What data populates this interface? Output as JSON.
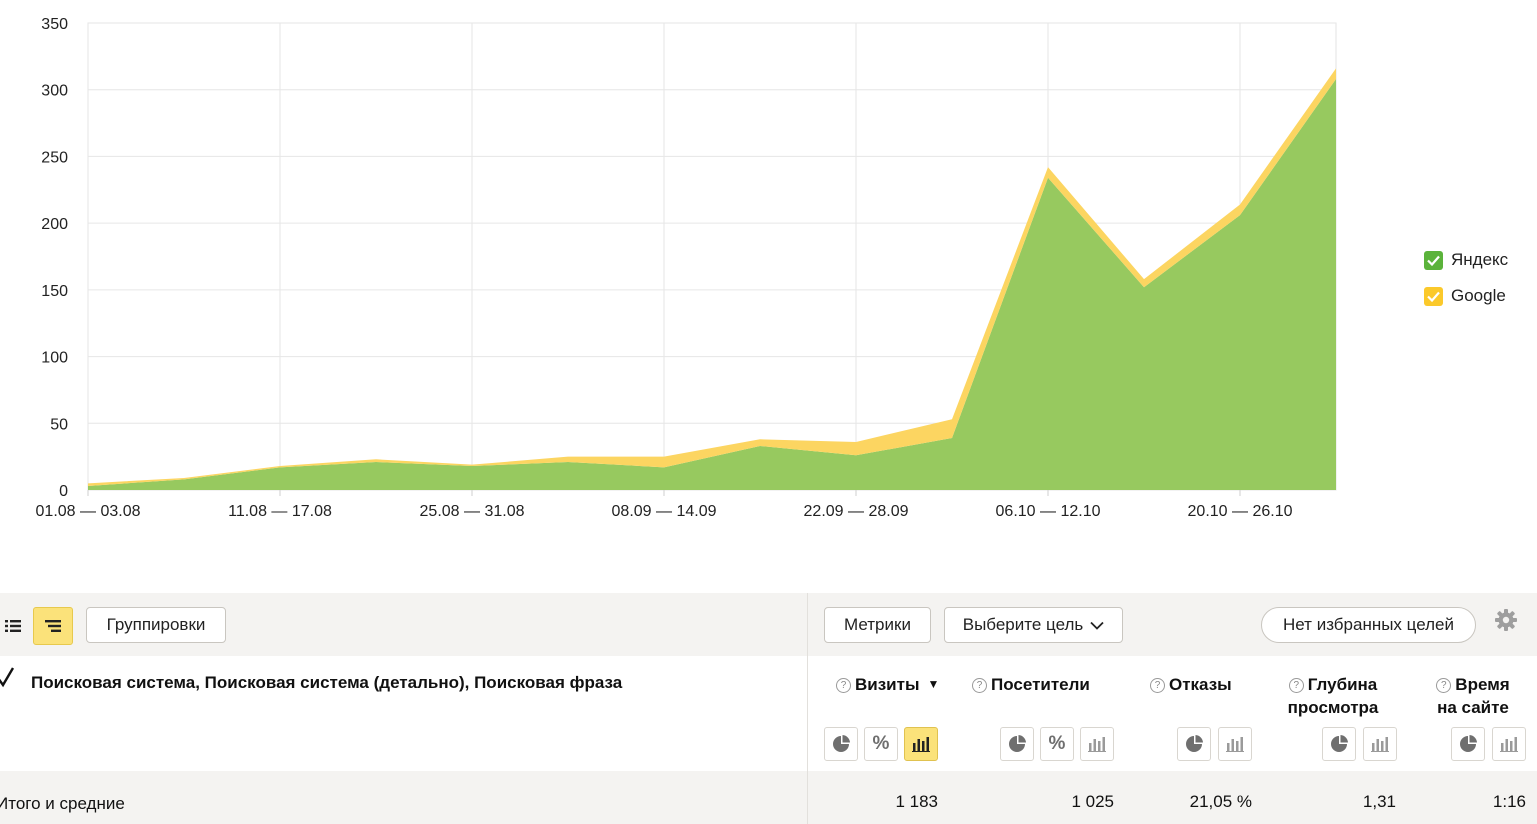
{
  "chart_data": {
    "type": "area",
    "stacked": true,
    "categories": [
      "01.08 — 03.08",
      "",
      "11.08 — 17.08",
      "",
      "25.08 — 31.08",
      "",
      "08.09 — 14.09",
      "",
      "22.09 — 28.09",
      "",
      "06.10 — 12.10",
      "",
      "20.10 — 26.10",
      ""
    ],
    "x_tick_labels": [
      "01.08 — 03.08",
      "11.08 — 17.08",
      "25.08 — 31.08",
      "08.09 — 14.09",
      "22.09 — 28.09",
      "06.10 — 12.10",
      "20.10 — 26.10"
    ],
    "series": [
      {
        "name": "Яндекс",
        "color": "#97c95f",
        "values": [
          3,
          8,
          17,
          21,
          18,
          21,
          17,
          33,
          26,
          39,
          234,
          152,
          206,
          308
        ]
      },
      {
        "name": "Google",
        "color": "#fcd561",
        "values": [
          2,
          1,
          1,
          2,
          1,
          4,
          8,
          5,
          10,
          14,
          8,
          6,
          8,
          8
        ]
      }
    ],
    "ylim": [
      0,
      350
    ],
    "y_ticks": [
      0,
      50,
      100,
      150,
      200,
      250,
      300,
      350
    ],
    "grid": true,
    "legend": "right"
  },
  "legend": {
    "items": [
      {
        "label": "Яндекс",
        "color": "#5bb33b"
      },
      {
        "label": "Google",
        "color": "#fbc92b"
      }
    ]
  },
  "toolbar": {
    "groupings": "Группировки",
    "metrics": "Метрики",
    "goal_select": "Выберите цель",
    "favorites": "Нет избранных целей"
  },
  "table": {
    "dimension_title": "Поисковая система, Поисковая система (детально), Поисковая фраза",
    "columns": [
      {
        "line1": "Визиты",
        "line2": "",
        "sorted": true
      },
      {
        "line1": "Посетители",
        "line2": ""
      },
      {
        "line1": "Отказы",
        "line2": ""
      },
      {
        "line1": "Глубина",
        "line2": "просмотра"
      },
      {
        "line1": "Время",
        "line2": "на сайте"
      }
    ],
    "totals_label": "Итого и средние",
    "totals": [
      "1 183",
      "1 025",
      "21,05 %",
      "1,31",
      "1:16"
    ]
  }
}
